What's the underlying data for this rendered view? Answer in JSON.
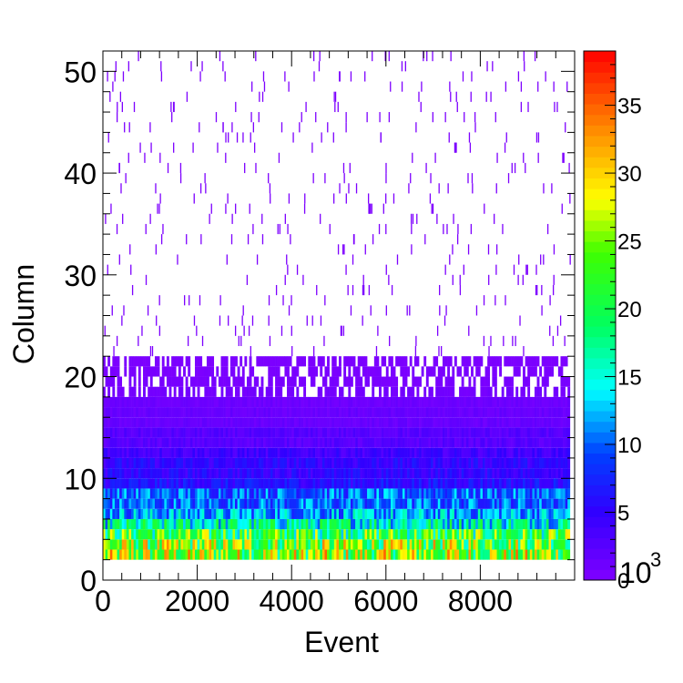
{
  "chart_data": {
    "type": "heatmap",
    "title": "",
    "xlabel": "Event",
    "ylabel": "Column",
    "x_range": [
      0,
      10000
    ],
    "y_range": [
      0,
      52
    ],
    "x_ticks": [
      "0",
      "2000",
      "4000",
      "6000",
      "8000"
    ],
    "y_ticks": [
      "0",
      "10",
      "20",
      "30",
      "40",
      "50"
    ],
    "colorbar": {
      "range": [
        0,
        39
      ],
      "ticks": [
        "0",
        "5",
        "10",
        "15",
        "20",
        "25",
        "30",
        "35"
      ],
      "exponent_label": "10",
      "exponent_power": "3"
    },
    "columns": [
      {
        "column": 2,
        "mean": 25
      },
      {
        "column": 3,
        "mean": 24
      },
      {
        "column": 4,
        "mean": 21
      },
      {
        "column": 5,
        "mean": 16
      },
      {
        "column": 6,
        "mean": 12
      },
      {
        "column": 7,
        "mean": 10
      },
      {
        "column": 8,
        "mean": 10
      },
      {
        "column": 9,
        "mean": 6
      },
      {
        "column": 10,
        "mean": 5
      },
      {
        "column": 11,
        "mean": 5
      },
      {
        "column": 12,
        "mean": 4
      },
      {
        "column": 13,
        "mean": 2.5
      },
      {
        "column": 14,
        "mean": 2.5
      },
      {
        "column": 15,
        "mean": 1.5
      },
      {
        "column": 16,
        "mean": 1.5
      },
      {
        "column": 17,
        "mean": 1.2
      },
      {
        "column": 18,
        "mean": 0.8
      },
      {
        "column": 19,
        "mean": 0.5
      },
      {
        "column": 20,
        "mean": 0.4
      },
      {
        "column": 21,
        "mean": 0.3
      }
    ],
    "sparse_region": {
      "columns": [
        22,
        52
      ],
      "value": 0.2
    }
  }
}
